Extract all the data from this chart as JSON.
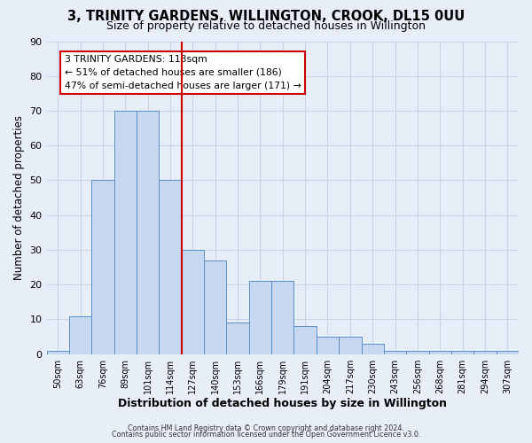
{
  "title": "3, TRINITY GARDENS, WILLINGTON, CROOK, DL15 0UU",
  "subtitle": "Size of property relative to detached houses in Willington",
  "xlabel": "Distribution of detached houses by size in Willington",
  "ylabel": "Number of detached properties",
  "bar_labels": [
    "50sqm",
    "63sqm",
    "76sqm",
    "89sqm",
    "101sqm",
    "114sqm",
    "127sqm",
    "140sqm",
    "153sqm",
    "166sqm",
    "179sqm",
    "191sqm",
    "204sqm",
    "217sqm",
    "230sqm",
    "243sqm",
    "256sqm",
    "268sqm",
    "281sqm",
    "294sqm",
    "307sqm"
  ],
  "bar_values": [
    1,
    11,
    50,
    70,
    70,
    50,
    30,
    27,
    9,
    21,
    21,
    8,
    5,
    5,
    3,
    1,
    1,
    1,
    1,
    1,
    1
  ],
  "bar_color": "#c5d8f0",
  "bar_edge_color": "#5b8fc9",
  "vline_x_index": 5,
  "vline_color": "#cc0000",
  "ylim": [
    0,
    90
  ],
  "yticks": [
    0,
    10,
    20,
    30,
    40,
    50,
    60,
    70,
    80,
    90
  ],
  "annotation_title": "3 TRINITY GARDENS: 113sqm",
  "annotation_line1": "← 51% of detached houses are smaller (186)",
  "annotation_line2": "47% of semi-detached houses are larger (171) →",
  "annotation_box_color": "#ffffff",
  "annotation_box_edge": "#cc0000",
  "footer1": "Contains HM Land Registry data © Crown copyright and database right 2024.",
  "footer2": "Contains public sector information licensed under the Open Government Licence v3.0.",
  "background_color": "#e8eef8",
  "grid_color": "#c8d4e8",
  "title_fontsize": 10.5,
  "subtitle_fontsize": 9
}
